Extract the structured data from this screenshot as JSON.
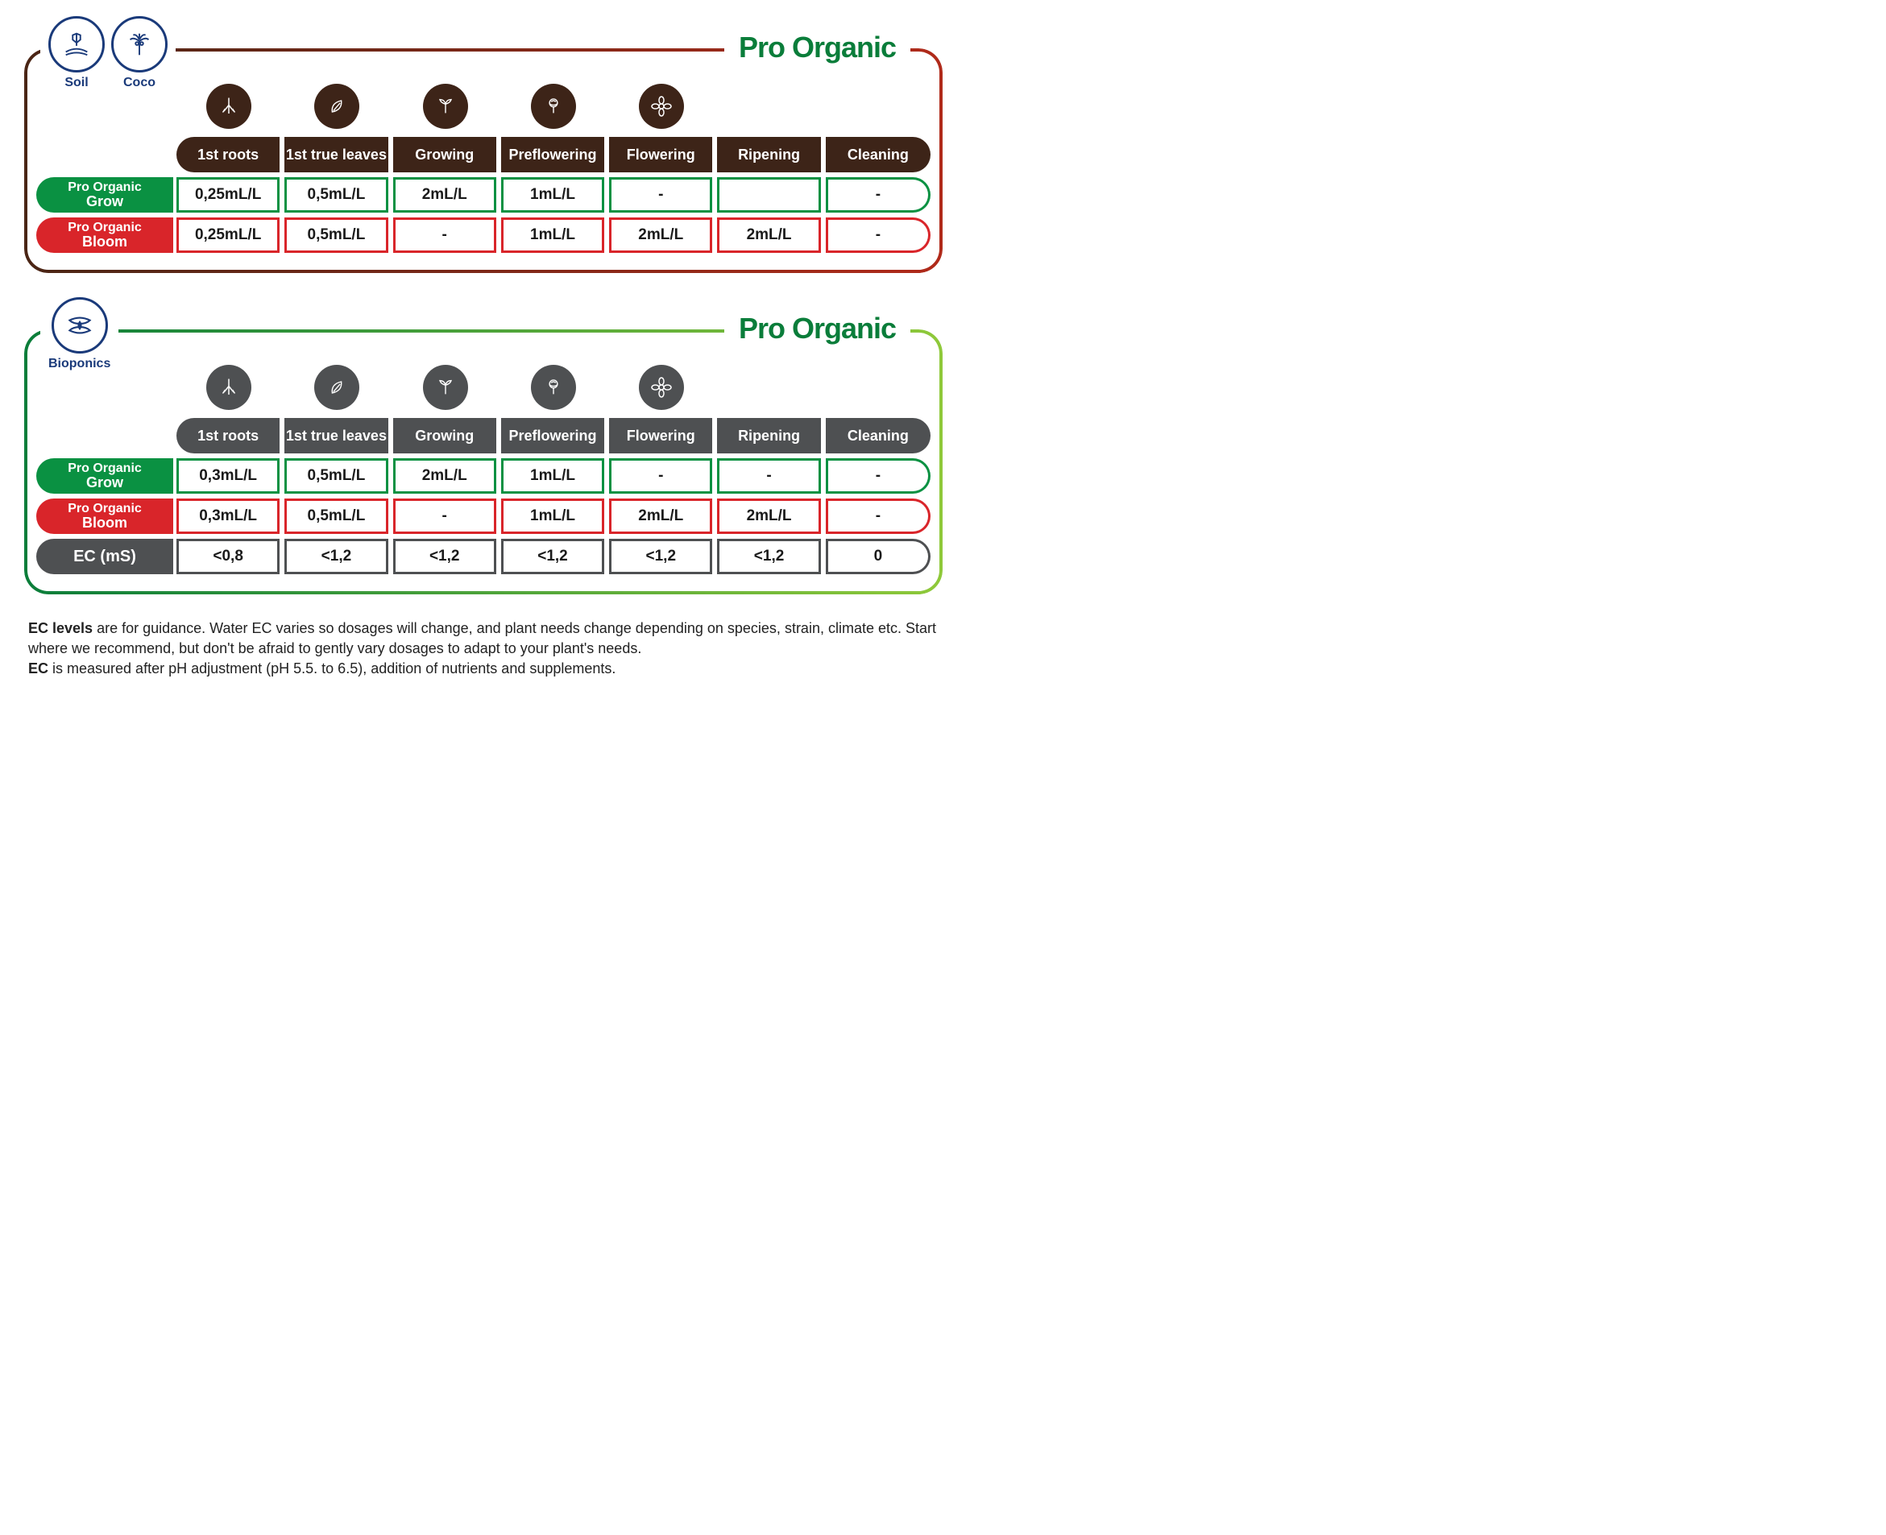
{
  "brand_title": "Pro Organic",
  "colors": {
    "brand_green": "#0a9142",
    "header_brown": "#3d2418",
    "header_gray": "#4e5052",
    "row_green": "#0a9142",
    "row_red": "#d9252a",
    "row_gray": "#4e5052",
    "badge_blue": "#1a3a7a",
    "icon_brown": "#3d2418",
    "icon_gray": "#4e5052",
    "section1_border_from": "#4a2515",
    "section1_border_to": "#b02a1a",
    "section2_border_from": "#0a7d3a",
    "section2_border_to": "#8fc93a",
    "text_dark": "#1a1a1a"
  },
  "stages": [
    "1st roots",
    "1st true leaves",
    "Growing",
    "Preflowering",
    "Flowering",
    "Ripening",
    "Cleaning"
  ],
  "stage_icons": [
    "roots",
    "leaf",
    "sprout",
    "bud",
    "flower",
    "",
    ""
  ],
  "section1": {
    "badges": [
      {
        "name": "soil",
        "label": "Soil"
      },
      {
        "name": "coco",
        "label": "Coco"
      }
    ],
    "header_bg": "#3d2418",
    "icon_bg": "#3d2418",
    "rows": [
      {
        "name": "grow",
        "label_l1": "Pro Organic",
        "label_l2": "Grow",
        "bg": "#0a9142",
        "values": [
          "0,25mL/L",
          "0,5mL/L",
          "2mL/L",
          "1mL/L",
          "-",
          "",
          "-"
        ]
      },
      {
        "name": "bloom",
        "label_l1": "Pro Organic",
        "label_l2": "Bloom",
        "bg": "#d9252a",
        "values": [
          "0,25mL/L",
          "0,5mL/L",
          "-",
          "1mL/L",
          "2mL/L",
          "2mL/L",
          "-"
        ]
      }
    ]
  },
  "section2": {
    "badges": [
      {
        "name": "bioponics",
        "label": "Bioponics"
      }
    ],
    "header_bg": "#4e5052",
    "icon_bg": "#4e5052",
    "rows": [
      {
        "name": "grow",
        "label_l1": "Pro Organic",
        "label_l2": "Grow",
        "bg": "#0a9142",
        "values": [
          "0,3mL/L",
          "0,5mL/L",
          "2mL/L",
          "1mL/L",
          "-",
          "-",
          "-"
        ]
      },
      {
        "name": "bloom",
        "label_l1": "Pro Organic",
        "label_l2": "Bloom",
        "bg": "#d9252a",
        "values": [
          "0,3mL/L",
          "0,5mL/L",
          "-",
          "1mL/L",
          "2mL/L",
          "2mL/L",
          "-"
        ]
      },
      {
        "name": "ec",
        "label_single": "EC (mS)",
        "bg": "#4e5052",
        "values": [
          "<0,8",
          "<1,2",
          "<1,2",
          "<1,2",
          "<1,2",
          "<1,2",
          "0"
        ]
      }
    ]
  },
  "footnote": {
    "line1_b": "EC levels",
    "line1": " are for guidance. Water EC varies so dosages will change, and plant needs change depending on species, strain, climate etc. Start where we recommend, but don't be afraid to gently vary dosages to adapt to your plant's needs.",
    "line2_b": "EC",
    "line2": " is measured after pH adjustment (pH 5.5. to 6.5), addition of nutrients and supplements."
  }
}
